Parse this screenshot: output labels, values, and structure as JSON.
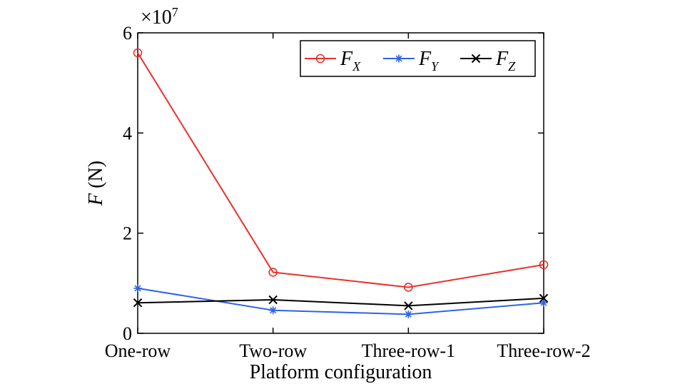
{
  "chart_data": {
    "type": "line",
    "categories": [
      "One-row",
      "Two-row",
      "Three-row-1",
      "Three-row-2"
    ],
    "series": [
      {
        "name": "F_X",
        "symbol": "F",
        "subscript": "X",
        "color": "#e8322b",
        "marker": "circle",
        "values": [
          56000000,
          12200000,
          9200000,
          13700000
        ]
      },
      {
        "name": "F_Y",
        "symbol": "F",
        "subscript": "Y",
        "color": "#2d63e8",
        "marker": "star",
        "values": [
          9000000,
          4600000,
          3800000,
          6100000
        ]
      },
      {
        "name": "F_Z",
        "symbol": "F",
        "subscript": "Z",
        "color": "#000000",
        "marker": "x",
        "values": [
          6100000,
          6700000,
          5500000,
          7000000
        ]
      }
    ],
    "ylim": [
      0,
      60000000
    ],
    "yticks": [
      0,
      20000000,
      40000000,
      60000000
    ],
    "ytick_labels": [
      "0",
      "2",
      "4",
      "6"
    ],
    "exponent_label": "×10",
    "exponent_power": "7",
    "ylabel_symbol": "F",
    "ylabel_unit": " (N)",
    "xlabel": "Platform configuration",
    "legend_position": "top-right",
    "grid": false
  }
}
